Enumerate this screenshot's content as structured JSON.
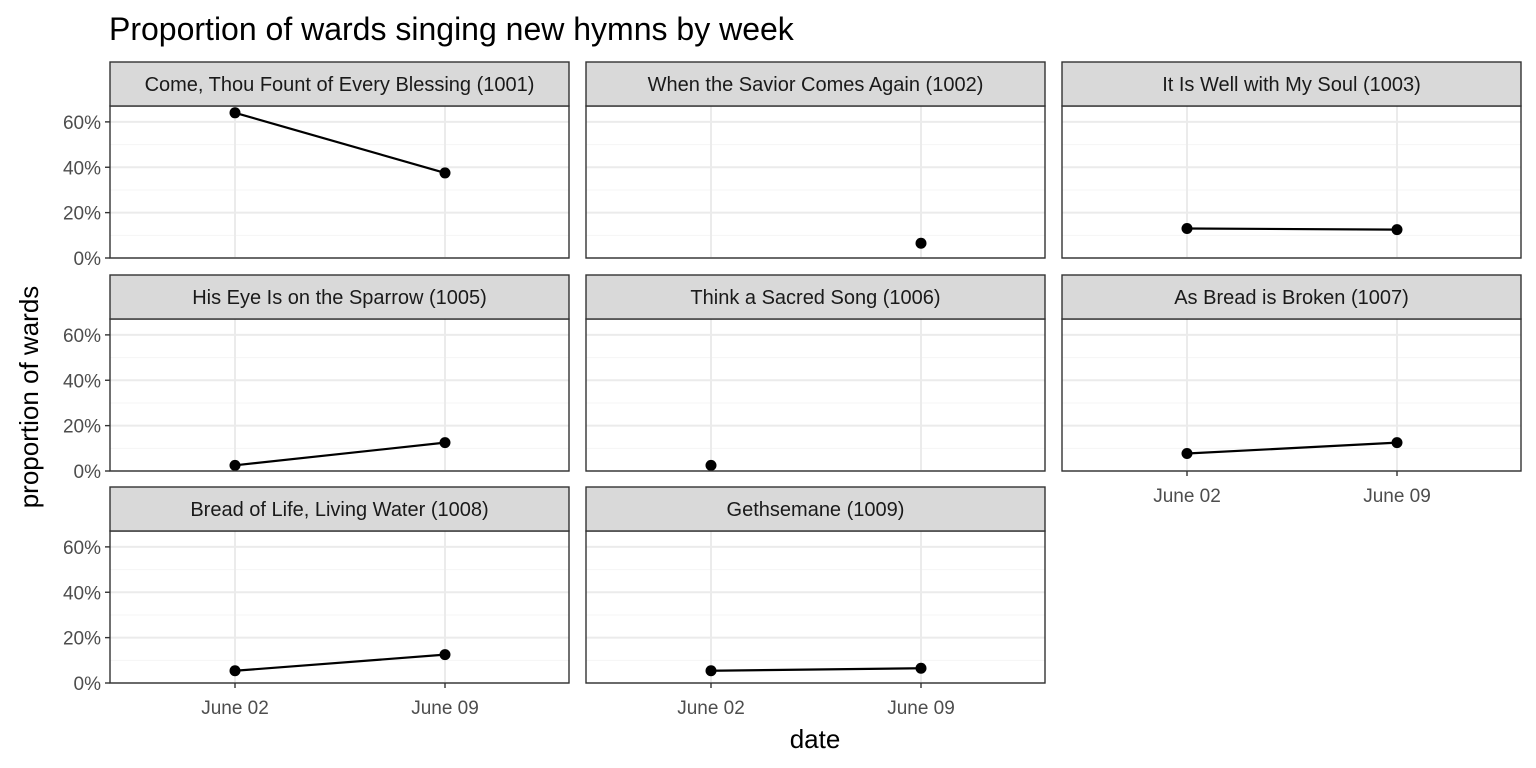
{
  "chart_data": {
    "type": "line",
    "title": "Proportion of wards singing new hymns by week",
    "xlabel": "date",
    "ylabel": "proportion of wards",
    "x_ticks": [
      "June 02",
      "June 09"
    ],
    "y_ticks": [
      "0%",
      "20%",
      "40%",
      "60%"
    ],
    "y_tick_values": [
      0,
      0.2,
      0.4,
      0.6
    ],
    "ylim": [
      0,
      0.67
    ],
    "grid": true,
    "panels": [
      {
        "name": "Come, Thou Fount of Every Blessing (1001)",
        "values": [
          0.64,
          0.375
        ]
      },
      {
        "name": "When the Savior Comes Again (1002)",
        "values": [
          null,
          0.065
        ]
      },
      {
        "name": "It Is Well with My Soul (1003)",
        "values": [
          0.13,
          0.125
        ]
      },
      {
        "name": "His Eye Is on the Sparrow (1005)",
        "values": [
          0.025,
          0.125
        ]
      },
      {
        "name": "Think a Sacred Song (1006)",
        "values": [
          0.025,
          null
        ]
      },
      {
        "name": "As Bread is Broken (1007)",
        "values": [
          0.077,
          0.125
        ]
      },
      {
        "name": "Bread of Life, Living Water (1008)",
        "values": [
          0.054,
          0.125
        ]
      },
      {
        "name": "Gethsemane (1009)",
        "values": [
          0.054,
          0.065
        ]
      }
    ],
    "colors": {
      "line": "#000000",
      "strip_fill": "#d9d9d9",
      "strip_border": "#333333",
      "grid_major": "#ebebeb",
      "grid_minor": "#f5f5f5",
      "panel_border": "#333333",
      "tick_label": "#4d4d4d"
    }
  }
}
